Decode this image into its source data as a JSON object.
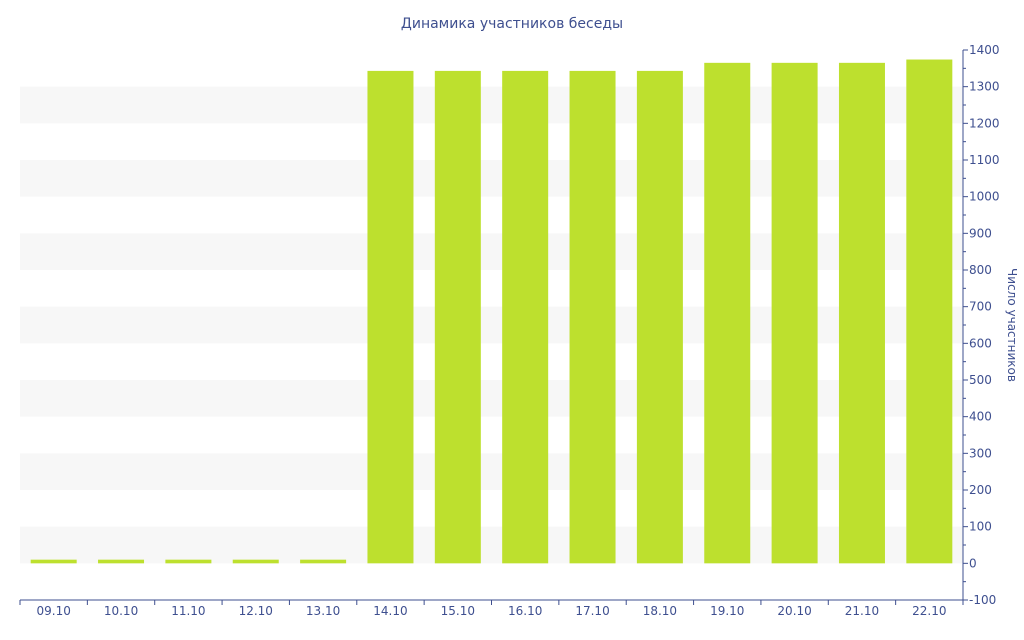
{
  "chart_data": {
    "type": "bar",
    "title": "Динамика участников беседы",
    "xlabel": "",
    "ylabel": "Число участников",
    "categories": [
      "09.10",
      "10.10",
      "11.10",
      "12.10",
      "13.10",
      "14.10",
      "15.10",
      "16.10",
      "17.10",
      "18.10",
      "19.10",
      "20.10",
      "21.10",
      "22.10"
    ],
    "values": [
      10,
      10,
      10,
      10,
      10,
      1343,
      1343,
      1343,
      1343,
      1343,
      1365,
      1365,
      1365,
      1374
    ],
    "ylim": [
      -100,
      1400
    ],
    "yticks": [
      -100,
      0,
      100,
      200,
      300,
      400,
      500,
      600,
      700,
      800,
      900,
      1000,
      1100,
      1200,
      1300,
      1400
    ],
    "y_axis_side": "right",
    "grid": "alternating bands",
    "legend": "none",
    "colors": {
      "bar": "#bde02e",
      "band": "#f7f7f7",
      "axis": "#3e4f8f",
      "text": "#3e4f8f"
    }
  }
}
